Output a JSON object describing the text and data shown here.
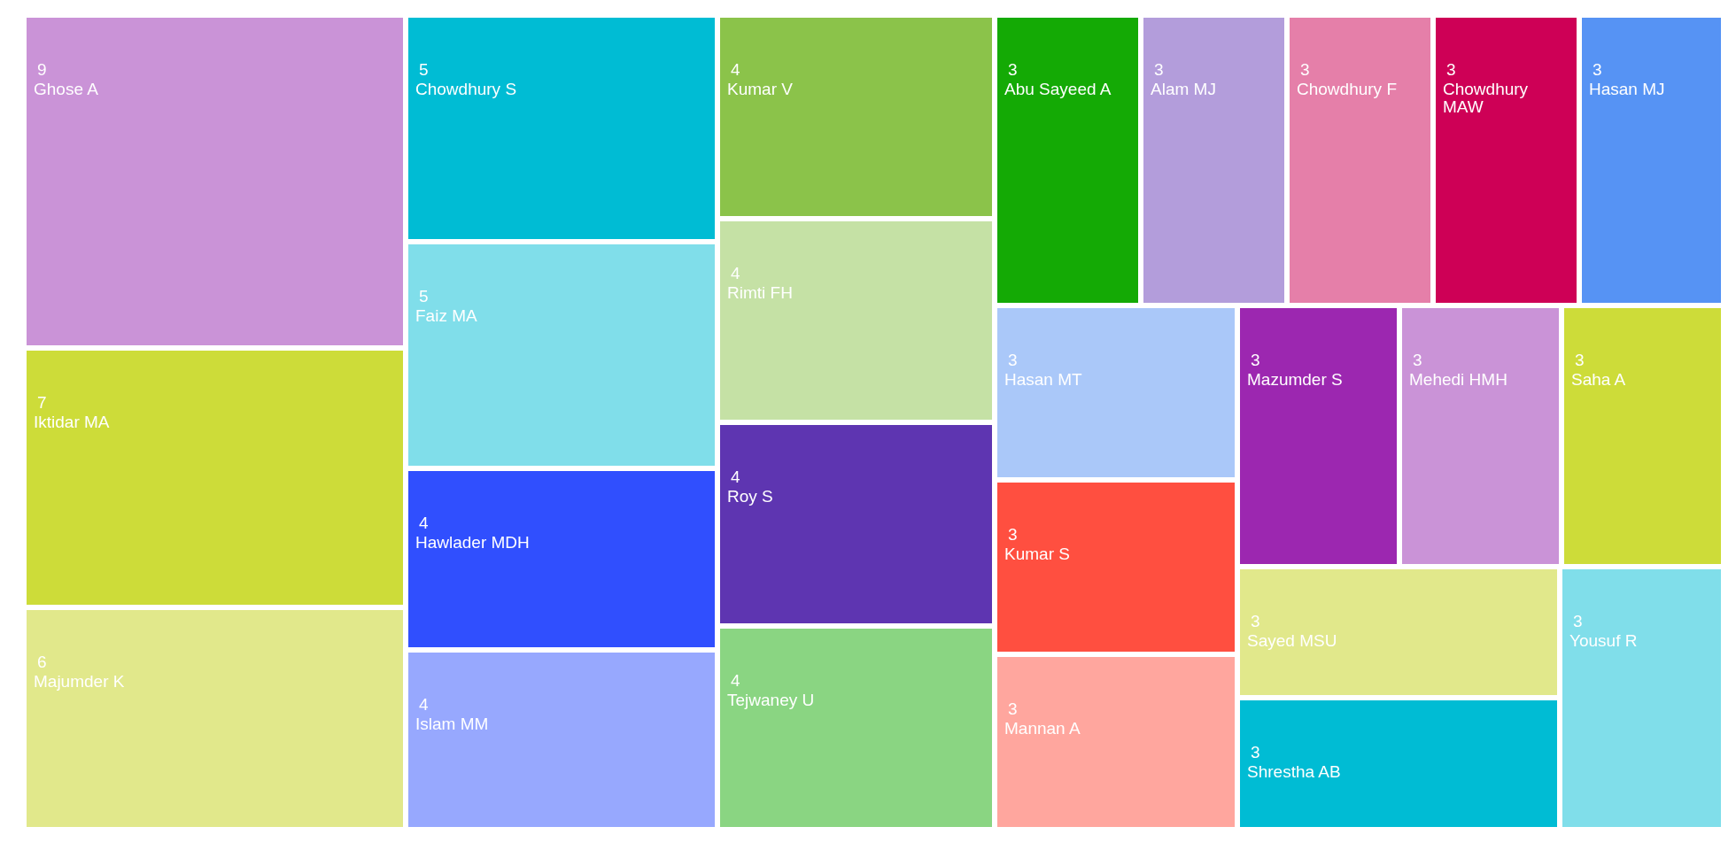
{
  "chart_data": {
    "type": "other",
    "categories": [
      "Ghose A",
      "Iktidar MA",
      "Majumder K",
      "Chowdhury S",
      "Faiz MA",
      "Hawlader MDH",
      "Islam MM",
      "Kumar V",
      "Rimti FH",
      "Roy S",
      "Tejwaney U",
      "Abu Sayeed A",
      "Alam MJ",
      "Chowdhury F",
      "Chowdhury MAW",
      "Hasan MJ",
      "Hasan MT",
      "Kumar S",
      "Mannan A",
      "Mazumder S",
      "Mehedi HMH",
      "Saha A",
      "Sayed MSU",
      "Shrestha AB",
      "Yousuf R"
    ],
    "values": [
      9,
      7,
      6,
      5,
      5,
      4,
      4,
      4,
      4,
      4,
      4,
      3,
      3,
      3,
      3,
      3,
      3,
      3,
      3,
      3,
      3,
      3,
      3,
      3,
      3
    ],
    "colors": [
      "#ca93d7",
      "#cddc39",
      "#e1e88b",
      "#00bcd4",
      "#80deea",
      "#304ffe",
      "#97a8fe",
      "#8bc34a",
      "#c5e1a5",
      "#5e35b1",
      "#8ad582",
      "#14aa05",
      "#b39ddb",
      "#e57fa9",
      "#ce0056",
      "#5693f4",
      "#aac8f9",
      "#ff4f40",
      "#ffa69e",
      "#9c27b0",
      "#ca93d7",
      "#cddc39",
      "#e1e88b",
      "#00bcd4",
      "#80deea"
    ],
    "data_labels": true
  }
}
